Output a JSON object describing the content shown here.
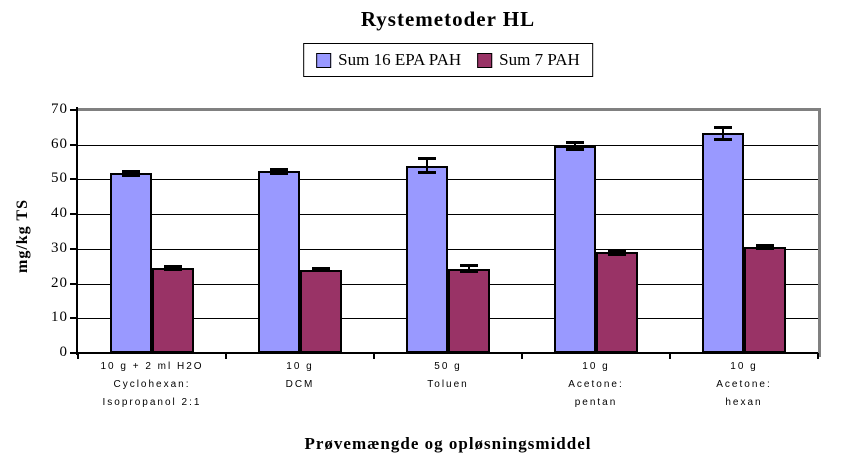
{
  "title": "Rystemetoder HL",
  "legend": {
    "position": "top-center",
    "items": [
      "Sum 16 EPA PAH",
      "Sum 7 PAH"
    ]
  },
  "colors": {
    "series1": "#9999FF",
    "series2": "#993366",
    "bar_border": "#000000",
    "plot_border": "#808080",
    "gridline": "#000000",
    "background": "#FFFFFF"
  },
  "chart_data": {
    "type": "bar",
    "title": "Rystemetoder HL",
    "xlabel": "Prøvemængde og opløsningsmiddel",
    "ylabel": "mg/kg TS",
    "ylim": [
      0,
      70
    ],
    "ytick_step": 10,
    "grid": true,
    "legend_position": "top",
    "categories": [
      "10 g + 2 ml H2O / Cyclohexan: / Isopropanol 2:1",
      "10 g / DCM",
      "50 g / Toluen",
      "10 g / Acetone: / pentan",
      "10 g / Acetone: / hexan"
    ],
    "category_lines": [
      [
        "10 g + 2 ml H2O",
        "Cyclohexan:",
        "Isopropanol 2:1"
      ],
      [
        "10 g",
        "DCM"
      ],
      [
        "50 g",
        "Toluen"
      ],
      [
        "10 g",
        "Acetone:",
        "pentan"
      ],
      [
        "10 g",
        "Acetone:",
        "hexan"
      ]
    ],
    "series": [
      {
        "name": "Sum 16 EPA PAH",
        "color": "#9999FF",
        "values": [
          51.8,
          52.3,
          54.0,
          59.6,
          63.3
        ],
        "errors": [
          0.6,
          0.7,
          2.0,
          1.0,
          1.7
        ]
      },
      {
        "name": "Sum 7 PAH",
        "color": "#993366",
        "values": [
          24.5,
          24.0,
          24.3,
          29.0,
          30.5
        ],
        "errors": [
          0.4,
          0.3,
          0.8,
          0.5,
          0.4
        ]
      }
    ]
  }
}
